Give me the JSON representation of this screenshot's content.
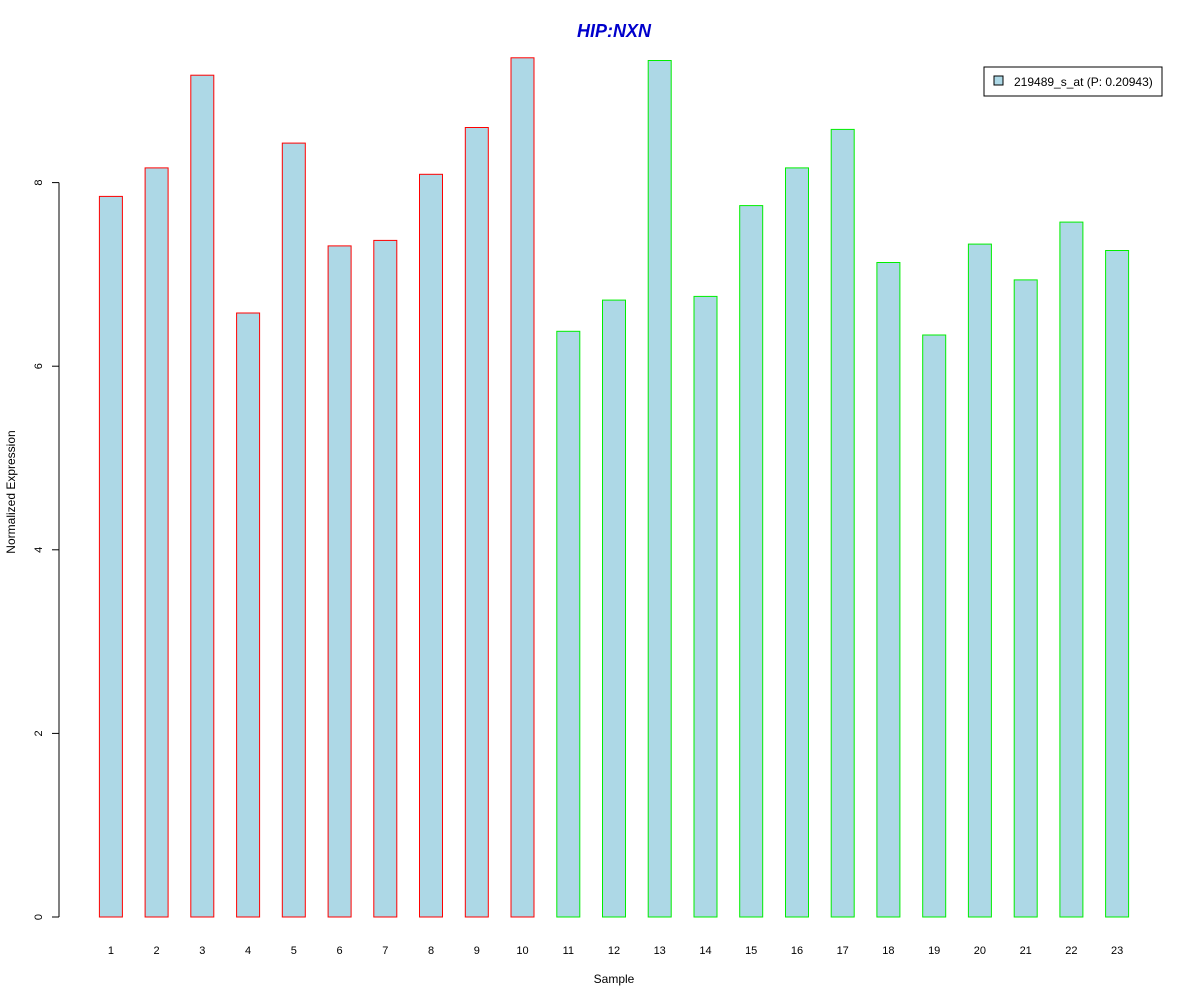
{
  "chart_data": {
    "type": "bar",
    "title": "HIP:NXN",
    "xlabel": "Sample",
    "ylabel": "Normalized Expression",
    "ylim": [
      0,
      9.5
    ],
    "yticks": [
      0,
      2,
      4,
      6,
      8
    ],
    "categories": [
      "1",
      "2",
      "3",
      "4",
      "5",
      "6",
      "7",
      "8",
      "9",
      "10",
      "11",
      "12",
      "13",
      "14",
      "15",
      "16",
      "17",
      "18",
      "19",
      "20",
      "21",
      "22",
      "23"
    ],
    "series": [
      {
        "name": "219489_s_at (P: 0.20943)",
        "values": [
          7.85,
          8.16,
          9.17,
          6.58,
          8.43,
          7.31,
          7.37,
          8.09,
          8.6,
          9.36,
          6.38,
          6.72,
          9.33,
          6.76,
          7.75,
          8.16,
          8.58,
          7.13,
          6.34,
          7.33,
          6.94,
          7.57,
          7.26
        ]
      }
    ],
    "groups": [
      {
        "from": 1,
        "to": 10,
        "border_color": "#ff0000"
      },
      {
        "from": 11,
        "to": 23,
        "border_color": "#00ee00"
      }
    ],
    "bar_fill": "#add8e6",
    "title_color": "#0000cc",
    "grid": false,
    "legend_position": "top-right"
  }
}
